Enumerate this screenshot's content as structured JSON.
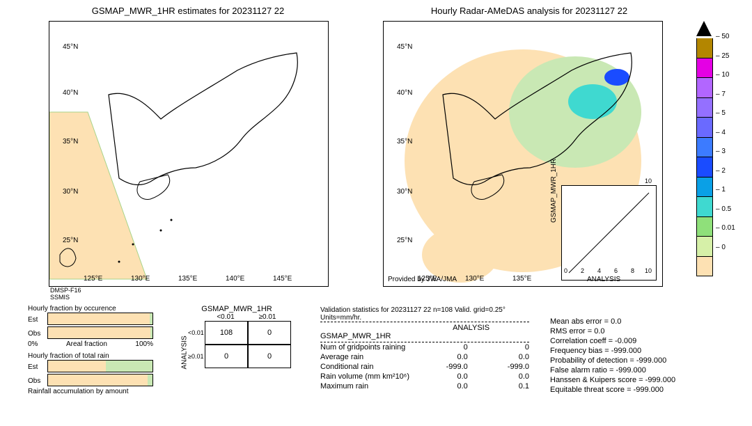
{
  "global": {
    "font_family": "Arial, sans-serif",
    "date": "20231127 22",
    "background_color": "#ffffff"
  },
  "left_map": {
    "title": "GSMAP_MWR_1HR estimates for 20231127 22",
    "title_fontsize": 13,
    "xlim": [
      120,
      150
    ],
    "ylim": [
      23,
      48
    ],
    "yticks": [
      "45°N",
      "40°N",
      "35°N",
      "30°N",
      "25°N"
    ],
    "xticks": [
      "125°E",
      "130°E",
      "135°E",
      "140°E",
      "145°E"
    ],
    "sensor_label_1": "DMSP-F16",
    "sensor_label_2": "SSMIS",
    "land_outline_color": "#000000",
    "coverage_fill_color": "#fde1b3",
    "coverage_edge_color": "#a8d48a"
  },
  "right_map": {
    "title": "Hourly Radar-AMeDAS analysis for 20231127 22",
    "title_fontsize": 13,
    "xlim": [
      120,
      150
    ],
    "ylim": [
      23,
      48
    ],
    "yticks": [
      "45°N",
      "40°N",
      "35°N",
      "30°N",
      "25°N"
    ],
    "xticks": [
      "125°E",
      "130°E",
      "135°E"
    ],
    "provided_by": "Provided by JWA/JMA"
  },
  "colorbar": {
    "unit": "mm/hr",
    "levels": [
      "50",
      "25",
      "10",
      "7",
      "5",
      "4",
      "3",
      "2",
      "1",
      "0.5",
      "0.01",
      "0"
    ],
    "colors": [
      "#000000",
      "#b38600",
      "#e400e4",
      "#b266ff",
      "#9470ff",
      "#6a6aff",
      "#3c7bff",
      "#1a4cff",
      "#0aa0e6",
      "#3fd9d0",
      "#8fe07a",
      "#d6f0a8",
      "#fde1b3"
    ]
  },
  "inset_scatter": {
    "xlabel": "ANALYSIS",
    "ylabel": "GSMAP_MWR_1HR",
    "lim": [
      0,
      10
    ],
    "ticks": [
      "0",
      "2",
      "4",
      "6",
      "8",
      "10"
    ]
  },
  "occur_bars": {
    "title": "Hourly fraction by occurence",
    "rows": [
      "Est",
      "Obs"
    ],
    "areal_label": "Areal fraction",
    "xlim_labels": [
      "0%",
      "100%"
    ],
    "est_split": [
      0.97,
      0.03
    ],
    "obs_split": [
      0.98,
      0.02
    ],
    "colors": {
      "less": "#fde1b3",
      "more": "#c9e8b4"
    }
  },
  "total_bars": {
    "title": "Hourly fraction of total rain",
    "rows": [
      "Est",
      "Obs"
    ],
    "accum_label": "Rainfall accumulation by amount",
    "est_split": [
      0.55,
      0.45
    ],
    "obs_split": [
      0.95,
      0.05
    ],
    "colors": {
      "a": "#fde1b3",
      "b": "#c9e8b4"
    }
  },
  "contingency": {
    "header": "GSMAP_MWR_1HR",
    "col_labels": [
      "<0.01",
      "≥0.01"
    ],
    "row_axis": "ANALYSIS",
    "row_labels": [
      "<0.01",
      "≥0.01"
    ],
    "cells": [
      [
        108,
        0
      ],
      [
        0,
        0
      ]
    ]
  },
  "stats": {
    "header": "Validation statistics for 20231127 22  n=108 Valid. grid=0.25° Units=mm/hr.",
    "col_heads": [
      "ANALYSIS",
      "GSMAP_MWR_1HR"
    ],
    "rows": [
      {
        "name": "Num of gridpoints raining",
        "a": "0",
        "b": "0"
      },
      {
        "name": "Average rain",
        "a": "0.0",
        "b": "0.0"
      },
      {
        "name": "Conditional rain",
        "a": "-999.0",
        "b": "-999.0"
      },
      {
        "name": "Rain volume (mm km²10⁶)",
        "a": "0.0",
        "b": "0.0"
      },
      {
        "name": "Maximum rain",
        "a": "0.0",
        "b": "0.1"
      }
    ],
    "right_block": [
      {
        "name": "Mean abs error =",
        "v": "   0.0"
      },
      {
        "name": "RMS error =",
        "v": "   0.0"
      },
      {
        "name": "Correlation coeff =",
        "v": "-0.009"
      },
      {
        "name": "Frequency bias =",
        "v": "-999.000"
      },
      {
        "name": "Probability of detection =",
        "v": " -999.000"
      },
      {
        "name": "False alarm ratio =",
        "v": "-999.000"
      },
      {
        "name": "Hanssen & Kuipers score =",
        "v": "-999.000"
      },
      {
        "name": "Equitable threat score =",
        "v": "-999.000"
      }
    ]
  }
}
